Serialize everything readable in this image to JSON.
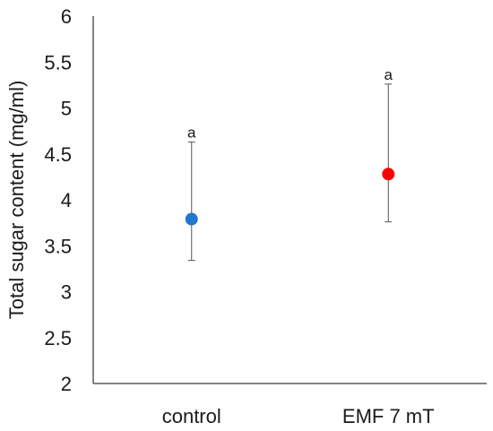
{
  "chart_data": {
    "type": "scatter",
    "title": "",
    "xlabel": "",
    "ylabel": "Total sugar content (mg/ml)",
    "ylim": [
      2,
      6
    ],
    "yticks": [
      "2",
      "2.5",
      "3",
      "3.5",
      "4",
      "4.5",
      "5",
      "5.5",
      "6"
    ],
    "categories": [
      "control",
      "EMF 7 mT"
    ],
    "points": [
      {
        "category": "control",
        "value": 3.79,
        "error_low": 3.34,
        "error_high": 4.63,
        "annotation": "a",
        "color": "#1f77d0"
      },
      {
        "category": "EMF 7 mT",
        "value": 4.28,
        "error_low": 3.76,
        "error_high": 5.26,
        "annotation": "a",
        "color": "#ff0000"
      }
    ],
    "grid": false,
    "legend": "none"
  }
}
